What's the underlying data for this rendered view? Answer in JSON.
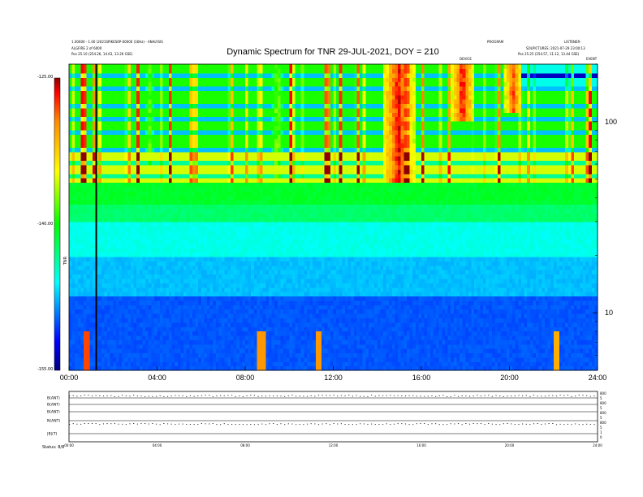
{
  "header": {
    "title": "Dynamic Spectrum for TNR 29-JUL-2021, DOY = 210",
    "left_line1": "1.00000 - 1.00 (2021SPIKES6P-00000 (16Hz) - ANALYSIS",
    "left_line2": "ALGFIRE 2 of 6000",
    "left_line3": "Pos    25.10 (254.26, 14.63, 13.26 GSE)",
    "right_line1": "PROGRAM",
    "right_line2": "LISTENER-",
    "right_line3": "SOLPICTURES: 2021-07-29 23:00:13",
    "right_line4": "Pos    25.25 (254.57, 11.12, 13.44 GSE)",
    "event_label_1": "DEVICE",
    "event_label_2": "EVENT"
  },
  "colorbar": {
    "ticks": [
      "-125.00",
      "-140.00",
      "-155.00"
    ],
    "label": "TNR",
    "colors": [
      "#8b0000",
      "#ff0000",
      "#ff8c00",
      "#ffff00",
      "#00ff00",
      "#00ffff",
      "#0000ff",
      "#000080"
    ]
  },
  "chart_data": {
    "type": "heatmap",
    "title": "Dynamic Spectrum for TNR 29-JUL-2021, DOY = 210",
    "x_ticks": [
      "00:00",
      "04:00",
      "08:00",
      "12:00",
      "16:00",
      "20:00",
      "24:00"
    ],
    "x_range_hours": [
      0,
      24
    ],
    "y_scale": "log",
    "y_ticks": [
      "100",
      "10"
    ],
    "y_tick_values": [
      100,
      10
    ],
    "y_range": [
      5,
      200
    ],
    "color_range": [
      -155,
      -125
    ],
    "color_ticks": [
      -125,
      -140,
      -155
    ],
    "color_label": "TNR",
    "data_gap_hours": [
      1.2,
      1.25
    ],
    "bands": [
      {
        "freq_range": [
          48,
          200
        ],
        "base_level": -139.5,
        "note": "upper band (blue with structured emission)"
      },
      {
        "freq_range": [
          38,
          48
        ],
        "base_level": -141.0
      },
      {
        "freq_range": [
          30,
          38
        ],
        "base_level": -142.5
      },
      {
        "freq_range": [
          20,
          30
        ],
        "base_level": -145.5
      },
      {
        "freq_range": [
          12,
          20
        ],
        "base_level": -147.5
      },
      {
        "freq_range": [
          5,
          12
        ],
        "base_level": -150.0
      }
    ],
    "emission_bursts": [
      {
        "t_start": 14.2,
        "t_end": 15.6,
        "freq_min": 48,
        "level": -125
      },
      {
        "t_start": 17.3,
        "t_end": 18.3,
        "freq_min": 100,
        "level": -125
      },
      {
        "t_start": 19.7,
        "t_end": 20.5,
        "freq_min": 110,
        "level": -126
      },
      {
        "t_start": 9.2,
        "t_end": 9.6,
        "freq_min": 50,
        "level": -134
      },
      {
        "t_start": 3.4,
        "t_end": 3.8,
        "freq_min": 60,
        "level": -137
      }
    ],
    "spikes": [
      {
        "t": 0.75,
        "level": -128
      },
      {
        "t": 8.65,
        "level": -130
      },
      {
        "t": 11.3,
        "level": -130
      },
      {
        "t": 22.1,
        "level": -131
      }
    ]
  },
  "bottom_panel": {
    "x_ticks": [
      "00:00",
      "04:00",
      "08:00",
      "12:00",
      "16:00",
      "20:00",
      "24:00"
    ],
    "row_labels": [
      "B(ANT)",
      "B(ANT)",
      "B(ANT)",
      "N(ANT)",
      "|B|(T)"
    ],
    "right_labels": [
      "800",
      "5",
      "800",
      "5",
      "800",
      "5",
      "800",
      "5",
      "1",
      "0"
    ],
    "footer_label": "Status: 8/8"
  }
}
